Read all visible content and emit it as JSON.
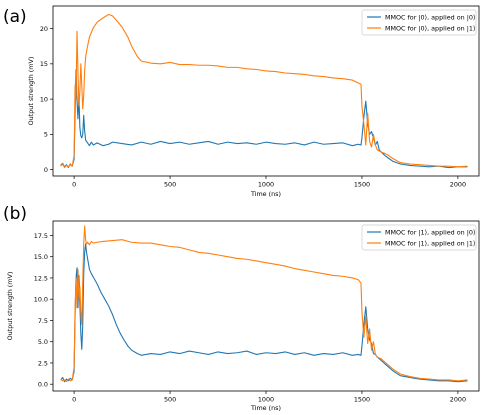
{
  "chart_data": [
    {
      "panel_label": "(a)",
      "type": "line",
      "xlabel": "Time (ns)",
      "ylabel": "Output strength  (mV)",
      "xlim": [
        -110,
        2110
      ],
      "ylim": [
        -0.9,
        23.2
      ],
      "xticks": [
        0,
        500,
        1000,
        1500,
        2000
      ],
      "xtick_labels": [
        "0",
        "500",
        "1000",
        "1500",
        "2000"
      ],
      "yticks": [
        0,
        5,
        10,
        15,
        20
      ],
      "ytick_labels": [
        "0",
        "5",
        "10",
        "15",
        "20"
      ],
      "grid": false,
      "legend_placement": "top-right",
      "series": [
        {
          "name": "MMOC for |0⟩, applied on |0⟩",
          "color": "#1f77b4",
          "x": [
            -70,
            -60,
            -50,
            -40,
            -30,
            -20,
            -10,
            0,
            5,
            10,
            15,
            20,
            25,
            30,
            35,
            40,
            45,
            50,
            55,
            60,
            70,
            80,
            90,
            100,
            120,
            150,
            180,
            200,
            250,
            300,
            350,
            400,
            450,
            500,
            550,
            600,
            650,
            700,
            750,
            800,
            850,
            900,
            950,
            1000,
            1050,
            1100,
            1150,
            1200,
            1250,
            1300,
            1350,
            1400,
            1450,
            1480,
            1495,
            1500,
            1510,
            1520,
            1530,
            1540,
            1550,
            1560,
            1570,
            1580,
            1590,
            1600,
            1620,
            1640,
            1660,
            1680,
            1700,
            1750,
            1800,
            1850,
            1900,
            1950,
            2000,
            2050
          ],
          "y": [
            0.6,
            0.9,
            0.4,
            0.7,
            0.3,
            0.8,
            0.5,
            1.5,
            8,
            14.2,
            10,
            7.2,
            10.5,
            6,
            4.8,
            4.5,
            5,
            7.7,
            5.5,
            4.2,
            3.8,
            3.4,
            3.9,
            3.5,
            3.8,
            3.4,
            3.6,
            3.9,
            3.7,
            3.5,
            3.9,
            3.6,
            4,
            3.7,
            3.9,
            3.6,
            3.8,
            4,
            3.6,
            3.9,
            3.7,
            3.8,
            3.6,
            3.9,
            3.7,
            3.6,
            3.8,
            3.5,
            3.9,
            3.6,
            3.7,
            3.8,
            3.4,
            3.6,
            3.5,
            4.5,
            7.5,
            9.7,
            6.5,
            5,
            5.4,
            4.5,
            3.5,
            4,
            2.8,
            2.5,
            2,
            1.6,
            1.2,
            1,
            0.8,
            0.6,
            0.5,
            0.4,
            0.5,
            0.3,
            0.4,
            0.4
          ]
        },
        {
          "name": "MMOC for |0⟩, applied on |1⟩",
          "color": "#ff7f0e",
          "x": [
            -70,
            -60,
            -50,
            -40,
            -30,
            -20,
            -10,
            0,
            5,
            10,
            15,
            20,
            25,
            30,
            35,
            40,
            45,
            50,
            55,
            60,
            70,
            80,
            100,
            120,
            150,
            180,
            200,
            220,
            250,
            280,
            300,
            330,
            350,
            400,
            450,
            500,
            550,
            600,
            650,
            700,
            750,
            800,
            850,
            900,
            950,
            1000,
            1050,
            1100,
            1150,
            1200,
            1250,
            1300,
            1350,
            1400,
            1450,
            1480,
            1495,
            1500,
            1510,
            1520,
            1530,
            1540,
            1550,
            1560,
            1570,
            1580,
            1600,
            1620,
            1640,
            1660,
            1680,
            1700,
            1750,
            1800,
            1850,
            1900,
            1950,
            2000,
            2050
          ],
          "y": [
            0.5,
            0.8,
            0.3,
            0.6,
            0.4,
            0.7,
            0.5,
            2,
            12,
            10,
            19.6,
            14,
            9,
            11,
            15,
            12,
            8.6,
            10.5,
            14,
            16,
            17.5,
            18.8,
            20.1,
            20.9,
            21.5,
            22,
            21.8,
            21.2,
            20.2,
            18.8,
            17.5,
            16,
            15.4,
            15.1,
            15,
            15.2,
            14.9,
            14.9,
            14.8,
            14.8,
            14.7,
            14.5,
            14.5,
            14.3,
            14.2,
            14,
            13.9,
            13.7,
            13.6,
            13.5,
            13.3,
            13.2,
            13,
            12.9,
            12.7,
            12.3,
            12.1,
            9,
            6.5,
            3.5,
            8,
            4,
            3.2,
            5,
            3.5,
            2.8,
            2.5,
            2.3,
            2,
            1.6,
            1.3,
            1,
            0.8,
            0.7,
            0.6,
            0.5,
            0.5,
            0.4,
            0.5
          ]
        }
      ]
    },
    {
      "panel_label": "(b)",
      "type": "line",
      "xlabel": "Time (ns)",
      "ylabel": "Output strength  (mV)",
      "xlim": [
        -110,
        2110
      ],
      "ylim": [
        -0.8,
        19.2
      ],
      "xticks": [
        0,
        500,
        1000,
        1500,
        2000
      ],
      "xtick_labels": [
        "0",
        "500",
        "1000",
        "1500",
        "2000"
      ],
      "yticks": [
        0,
        2.5,
        5,
        7.5,
        10,
        12.5,
        15,
        17.5
      ],
      "ytick_labels": [
        "0.0",
        "2.5",
        "5.0",
        "7.5",
        "10.0",
        "12.5",
        "15.0",
        "17.5"
      ],
      "grid": false,
      "legend_placement": "top-right",
      "series": [
        {
          "name": "MMOC for |1⟩, applied on |0⟩",
          "color": "#1f77b4",
          "x": [
            -70,
            -60,
            -50,
            -40,
            -30,
            -20,
            -10,
            0,
            5,
            10,
            15,
            20,
            25,
            30,
            35,
            40,
            45,
            50,
            55,
            60,
            65,
            70,
            80,
            90,
            100,
            120,
            140,
            160,
            180,
            200,
            220,
            240,
            260,
            280,
            300,
            330,
            350,
            400,
            450,
            500,
            550,
            600,
            650,
            700,
            750,
            800,
            850,
            900,
            950,
            1000,
            1050,
            1100,
            1150,
            1200,
            1250,
            1300,
            1350,
            1400,
            1450,
            1480,
            1495,
            1500,
            1510,
            1520,
            1530,
            1540,
            1550,
            1560,
            1570,
            1580,
            1600,
            1620,
            1640,
            1660,
            1680,
            1700,
            1750,
            1800,
            1850,
            1900,
            1950,
            2000,
            2050
          ],
          "y": [
            0.5,
            0.8,
            0.3,
            0.6,
            0.4,
            0.7,
            0.5,
            1.5,
            8,
            12.5,
            13.7,
            9,
            12.8,
            9.5,
            6,
            4.1,
            7,
            13,
            15.5,
            16.5,
            15.5,
            14.8,
            13.5,
            13,
            12.6,
            11.8,
            10.8,
            10,
            9.2,
            8.2,
            7,
            6,
            5.2,
            4.5,
            4,
            3.6,
            3.4,
            3.6,
            3.5,
            3.8,
            3.6,
            3.9,
            3.7,
            3.5,
            3.8,
            3.6,
            3.7,
            3.9,
            3.5,
            3.7,
            3.6,
            3.8,
            3.5,
            3.7,
            3.4,
            3.6,
            3.5,
            3.7,
            3.4,
            3.5,
            3.4,
            4.5,
            7,
            9.1,
            6.5,
            5.2,
            4.8,
            3.6,
            3.5,
            3.2,
            2.8,
            2.4,
            2,
            1.6,
            1.3,
            1,
            0.8,
            0.6,
            0.5,
            0.4,
            0.4,
            0.3,
            0.4
          ]
        },
        {
          "name": "MMOC for |1⟩, applied on |1⟩",
          "color": "#ff7f0e",
          "x": [
            -70,
            -60,
            -50,
            -40,
            -30,
            -20,
            -10,
            0,
            5,
            10,
            15,
            20,
            25,
            30,
            35,
            40,
            45,
            50,
            55,
            60,
            65,
            70,
            80,
            90,
            100,
            120,
            150,
            200,
            250,
            300,
            350,
            400,
            450,
            500,
            550,
            600,
            650,
            700,
            750,
            800,
            850,
            900,
            950,
            1000,
            1050,
            1100,
            1150,
            1200,
            1250,
            1300,
            1350,
            1400,
            1450,
            1480,
            1495,
            1500,
            1510,
            1520,
            1530,
            1540,
            1550,
            1560,
            1570,
            1580,
            1600,
            1620,
            1640,
            1660,
            1680,
            1700,
            1750,
            1800,
            1850,
            1900,
            1950,
            2000,
            2050
          ],
          "y": [
            0.6,
            0.4,
            0.5,
            0.3,
            0.6,
            0.4,
            0.5,
            2,
            9,
            12.5,
            9,
            13.5,
            10,
            11.5,
            8.5,
            7,
            12,
            16.5,
            18.6,
            17,
            16.5,
            16.7,
            16.4,
            16.8,
            16.6,
            16.7,
            16.8,
            16.9,
            17,
            16.7,
            16.6,
            16.6,
            16.4,
            16.2,
            16.1,
            15.8,
            15.5,
            15.4,
            15.2,
            15,
            14.8,
            14.7,
            14.5,
            14.3,
            14.1,
            13.9,
            13.6,
            13.4,
            13.2,
            13,
            12.8,
            12.7,
            12.5,
            12.3,
            11.9,
            8.5,
            5.5,
            8,
            4.8,
            6.5,
            4,
            5,
            3.5,
            3.2,
            3,
            2.6,
            2.2,
            1.8,
            1.5,
            1.2,
            0.9,
            0.7,
            0.6,
            0.5,
            0.5,
            0.4,
            0.5
          ]
        }
      ]
    }
  ]
}
